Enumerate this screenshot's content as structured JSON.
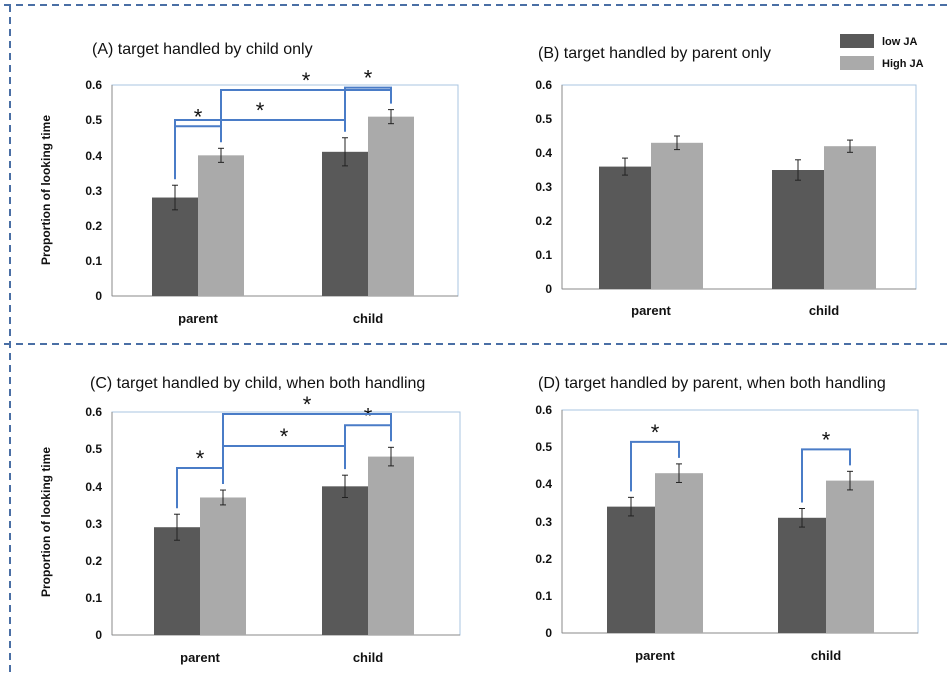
{
  "legend": [
    {
      "name": "low JA",
      "color": "#595959"
    },
    {
      "name": "High JA",
      "color": "#aaaaaa"
    }
  ],
  "significance_symbol": "*",
  "bracket_color": "#4a7cc7",
  "chart_data": [
    {
      "id": "A",
      "type": "bar",
      "title": "(A) target handled by child only",
      "ylabel": "Proportion of looking time",
      "categories": [
        "parent",
        "child"
      ],
      "series": [
        {
          "name": "low JA",
          "values": [
            0.28,
            0.41
          ],
          "errors": [
            0.035,
            0.04
          ]
        },
        {
          "name": "High JA",
          "values": [
            0.4,
            0.51
          ],
          "errors": [
            0.02,
            0.02
          ]
        }
      ],
      "ylim": [
        0,
        0.6
      ],
      "yticks": [
        "0",
        "0.1",
        "0.2",
        "0.3",
        "0.4",
        "0.5",
        "0.6"
      ],
      "grid": false,
      "significance": [
        {
          "from": [
            0,
            0
          ],
          "to": [
            0,
            1
          ],
          "level": 0
        },
        {
          "from": [
            1,
            0
          ],
          "to": [
            1,
            1
          ],
          "level": 0
        },
        {
          "from": [
            0,
            0
          ],
          "to": [
            1,
            0
          ],
          "level": 1
        },
        {
          "from": [
            0,
            1
          ],
          "to": [
            1,
            1
          ],
          "level": 2
        }
      ]
    },
    {
      "id": "B",
      "type": "bar",
      "title": "(B) target handled by parent only",
      "ylabel": "",
      "categories": [
        "parent",
        "child"
      ],
      "series": [
        {
          "name": "low JA",
          "values": [
            0.36,
            0.35
          ],
          "errors": [
            0.025,
            0.03
          ]
        },
        {
          "name": "High JA",
          "values": [
            0.43,
            0.42
          ],
          "errors": [
            0.02,
            0.018
          ]
        }
      ],
      "ylim": [
        0,
        0.6
      ],
      "yticks": [
        "0",
        "0.1",
        "0.2",
        "0.3",
        "0.4",
        "0.5",
        "0.6"
      ],
      "grid": false,
      "significance": []
    },
    {
      "id": "C",
      "type": "bar",
      "title": "(C) target handled by child, when both handling",
      "ylabel": "Proportion of looking time",
      "categories": [
        "parent",
        "child"
      ],
      "series": [
        {
          "name": "low JA",
          "values": [
            0.29,
            0.4
          ],
          "errors": [
            0.035,
            0.03
          ]
        },
        {
          "name": "High JA",
          "values": [
            0.37,
            0.48
          ],
          "errors": [
            0.02,
            0.025
          ]
        }
      ],
      "ylim": [
        0,
        0.6
      ],
      "yticks": [
        "0",
        "0.1",
        "0.2",
        "0.3",
        "0.4",
        "0.5",
        "0.6"
      ],
      "grid": false,
      "significance": [
        {
          "from": [
            0,
            0
          ],
          "to": [
            0,
            1
          ],
          "level": 0
        },
        {
          "from": [
            1,
            0
          ],
          "to": [
            1,
            1
          ],
          "level": 0
        },
        {
          "from": [
            0,
            1
          ],
          "to": [
            1,
            0
          ],
          "level": 1
        },
        {
          "from": [
            0,
            1
          ],
          "to": [
            1,
            1
          ],
          "level": 2
        }
      ]
    },
    {
      "id": "D",
      "type": "bar",
      "title": "(D) target handled by parent, when both handling",
      "ylabel": "",
      "categories": [
        "parent",
        "child"
      ],
      "series": [
        {
          "name": "low JA",
          "values": [
            0.34,
            0.31
          ],
          "errors": [
            0.025,
            0.025
          ]
        },
        {
          "name": "High JA",
          "values": [
            0.43,
            0.41
          ],
          "errors": [
            0.025,
            0.025
          ]
        }
      ],
      "ylim": [
        0,
        0.6
      ],
      "yticks": [
        "0",
        "0.1",
        "0.2",
        "0.3",
        "0.4",
        "0.5",
        "0.6"
      ],
      "grid": false,
      "significance": [
        {
          "from": [
            0,
            0
          ],
          "to": [
            0,
            1
          ],
          "level": 0
        },
        {
          "from": [
            1,
            0
          ],
          "to": [
            1,
            1
          ],
          "level": 0
        }
      ]
    }
  ]
}
